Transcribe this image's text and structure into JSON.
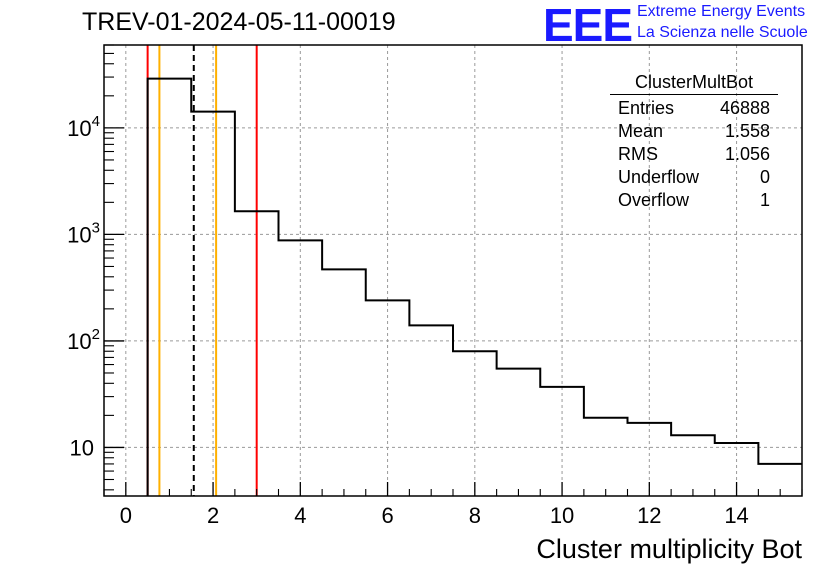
{
  "page": {
    "title": "TREV-01-2024-05-11-00019",
    "logo": {
      "text": "EEE",
      "line1": "Extreme Energy Events",
      "line2": "La Scienza nelle Scuole",
      "color": "#1a1aff"
    }
  },
  "stats_box": {
    "name": "ClusterMultBot",
    "rows": [
      {
        "label": "Entries",
        "value": "46888"
      },
      {
        "label": "Mean",
        "value": "1.558"
      },
      {
        "label": "RMS",
        "value": "1.056"
      },
      {
        "label": "Underflow",
        "value": "0"
      },
      {
        "label": "Overflow",
        "value": "1"
      }
    ]
  },
  "chart_data": {
    "type": "histogram",
    "title": "TREV-01-2024-05-11-00019",
    "xlabel": "Cluster multiplicity Bot",
    "ylabel": "",
    "xlim": [
      -0.5,
      15.5
    ],
    "ylim": [
      3.5,
      60000
    ],
    "log_y": true,
    "grid": true,
    "bin_edges": [
      0.5,
      1.5,
      2.5,
      3.5,
      4.5,
      5.5,
      6.5,
      7.5,
      8.5,
      9.5,
      10.5,
      11.5,
      12.5,
      13.5,
      14.5,
      15.5
    ],
    "counts": [
      29000,
      14200,
      1650,
      880,
      470,
      240,
      140,
      80,
      55,
      37,
      19,
      17,
      13,
      11,
      7
    ],
    "x_ticks": [
      "0",
      "2",
      "4",
      "6",
      "8",
      "10",
      "12",
      "14"
    ],
    "y_ticks": [
      {
        "value": 10,
        "base": "10",
        "exp": ""
      },
      {
        "value": 100,
        "base": "10",
        "exp": "2"
      },
      {
        "value": 1000,
        "base": "10",
        "exp": "3"
      },
      {
        "value": 10000,
        "base": "10",
        "exp": "4"
      }
    ],
    "vertical_lines": [
      {
        "x": 0.5,
        "color": "#ff0000",
        "style": "solid"
      },
      {
        "x": 0.77,
        "color": "#ffb000",
        "style": "solid"
      },
      {
        "x": 1.558,
        "color": "#000000",
        "style": "dashed"
      },
      {
        "x": 2.07,
        "color": "#ffb000",
        "style": "solid"
      },
      {
        "x": 3.0,
        "color": "#ff0000",
        "style": "solid"
      }
    ]
  }
}
